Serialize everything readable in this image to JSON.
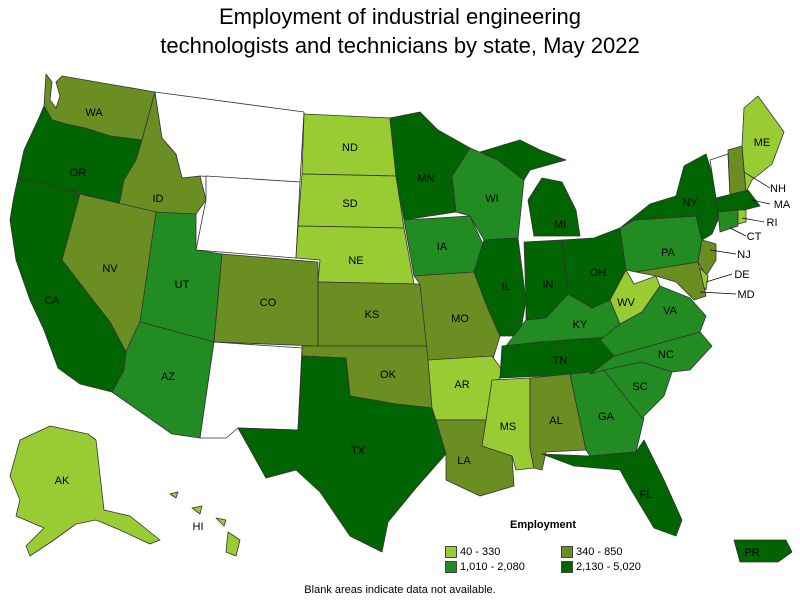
{
  "title_line1": "Employment of industrial engineering",
  "title_line2": "technologists and technicians by state, May 2022",
  "legend": {
    "title": "Employment",
    "items": [
      {
        "label": "40 - 330",
        "color": "#99cc33"
      },
      {
        "label": "340 - 850",
        "color": "#6b8e23"
      },
      {
        "label": "1,010 - 2,080",
        "color": "#228b22"
      },
      {
        "label": "2,130 - 5,020",
        "color": "#006400"
      }
    ]
  },
  "no_data_color": "#ffffff",
  "footnote": "Blank areas indicate data not available.",
  "states": {
    "WA": {
      "label": "WA",
      "level": 1
    },
    "OR": {
      "label": "OR",
      "level": 3
    },
    "CA": {
      "label": "CA",
      "level": 3
    },
    "ID": {
      "label": "ID",
      "level": 1
    },
    "NV": {
      "label": "NV",
      "level": 1
    },
    "MT": {
      "label": "",
      "level": null
    },
    "WY": {
      "label": "",
      "level": null
    },
    "UT": {
      "label": "UT",
      "level": 2
    },
    "AZ": {
      "label": "AZ",
      "level": 2
    },
    "CO": {
      "label": "CO",
      "level": 1
    },
    "NM": {
      "label": "",
      "level": null
    },
    "ND": {
      "label": "ND",
      "level": 0
    },
    "SD": {
      "label": "SD",
      "level": 0
    },
    "NE": {
      "label": "NE",
      "level": 0
    },
    "KS": {
      "label": "KS",
      "level": 1
    },
    "OK": {
      "label": "OK",
      "level": 1
    },
    "TX": {
      "label": "TX",
      "level": 3
    },
    "MN": {
      "label": "MN",
      "level": 3
    },
    "IA": {
      "label": "IA",
      "level": 2
    },
    "MO": {
      "label": "MO",
      "level": 1
    },
    "AR": {
      "label": "AR",
      "level": 0
    },
    "LA": {
      "label": "LA",
      "level": 1
    },
    "WI": {
      "label": "WI",
      "level": 2
    },
    "IL": {
      "label": "IL",
      "level": 3
    },
    "MI": {
      "label": "MI",
      "level": 3
    },
    "IN": {
      "label": "IN",
      "level": 3
    },
    "OH": {
      "label": "OH",
      "level": 3
    },
    "KY": {
      "label": "KY",
      "level": 2
    },
    "TN": {
      "label": "TN",
      "level": 3
    },
    "MS": {
      "label": "MS",
      "level": 0
    },
    "AL": {
      "label": "AL",
      "level": 1
    },
    "GA": {
      "label": "GA",
      "level": 2
    },
    "FL": {
      "label": "FL",
      "level": 3
    },
    "SC": {
      "label": "SC",
      "level": 2
    },
    "NC": {
      "label": "NC",
      "level": 2
    },
    "VA": {
      "label": "VA",
      "level": 2
    },
    "WV": {
      "label": "WV",
      "level": 0
    },
    "PA": {
      "label": "PA",
      "level": 2
    },
    "NY": {
      "label": "NY",
      "level": 3
    },
    "ME": {
      "label": "ME",
      "level": 0
    },
    "VT": {
      "label": "",
      "level": null
    },
    "NH": {
      "label": "NH",
      "level": 1
    },
    "MA": {
      "label": "MA",
      "level": 3
    },
    "RI": {
      "label": "RI",
      "level": 0
    },
    "CT": {
      "label": "CT",
      "level": 2
    },
    "NJ": {
      "label": "NJ",
      "level": 1
    },
    "DE": {
      "label": "DE",
      "level": 0
    },
    "MD": {
      "label": "MD",
      "level": 1
    },
    "AK": {
      "label": "AK",
      "level": 0
    },
    "HI": {
      "label": "HI",
      "level": 0
    },
    "PR": {
      "label": "PR",
      "level": 3
    }
  }
}
